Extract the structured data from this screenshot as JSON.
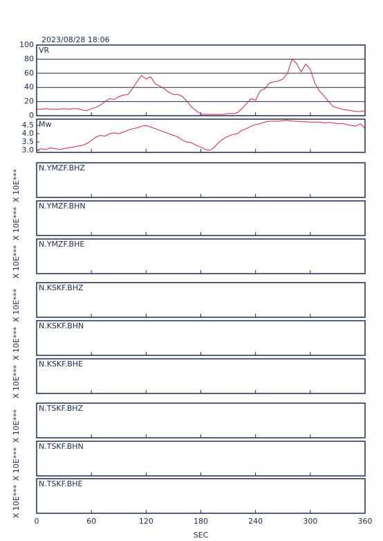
{
  "chart_data": [
    {
      "type": "line",
      "title": "2023/08/28 18:06",
      "label": "VR",
      "color": "#d0204a",
      "grid": true,
      "xlim": [
        0,
        360
      ],
      "xticks": [
        0,
        60,
        120,
        180,
        240,
        300,
        360
      ],
      "ylim": [
        0,
        100
      ],
      "yticks": [
        0,
        20,
        40,
        60,
        80,
        100
      ],
      "x": [
        0,
        5,
        10,
        15,
        20,
        25,
        30,
        35,
        40,
        45,
        50,
        55,
        60,
        65,
        70,
        75,
        80,
        85,
        90,
        95,
        100,
        105,
        110,
        115,
        120,
        125,
        130,
        135,
        140,
        145,
        150,
        155,
        160,
        165,
        170,
        175,
        180,
        185,
        190,
        195,
        200,
        205,
        210,
        215,
        220,
        225,
        230,
        235,
        240,
        245,
        250,
        255,
        260,
        265,
        270,
        275,
        280,
        285,
        290,
        295,
        300,
        305,
        310,
        315,
        320,
        325,
        330,
        335,
        340,
        345,
        350,
        355,
        360
      ],
      "values": [
        9,
        9,
        10,
        9,
        9,
        9,
        10,
        9,
        10,
        10,
        8,
        7,
        10,
        12,
        15,
        20,
        24,
        23,
        27,
        29,
        30,
        38,
        48,
        57,
        52,
        55,
        45,
        42,
        38,
        33,
        30,
        30,
        27,
        20,
        12,
        7,
        2,
        2,
        2,
        2,
        2,
        2,
        3,
        3,
        4,
        10,
        17,
        24,
        22,
        35,
        38,
        46,
        48,
        49,
        52,
        60,
        80,
        74,
        62,
        73,
        66,
        46,
        35,
        28,
        20,
        13,
        11,
        9,
        8,
        7,
        6,
        6,
        7
      ]
    },
    {
      "type": "line",
      "label": "Mw",
      "color": "#d0204a",
      "grid": false,
      "xlim": [
        0,
        360
      ],
      "xticks": [
        0,
        60,
        120,
        180,
        240,
        300,
        360
      ],
      "ylim": [
        2.875,
        4.875
      ],
      "yticks": [
        {
          "value": 3,
          "label": "3.0"
        },
        3.5,
        {
          "value": 4,
          "label": "4.0"
        },
        4.5
      ],
      "x": [
        0,
        5,
        10,
        15,
        20,
        25,
        30,
        35,
        40,
        45,
        50,
        55,
        60,
        65,
        70,
        75,
        80,
        85,
        90,
        95,
        100,
        105,
        110,
        115,
        120,
        125,
        130,
        135,
        140,
        145,
        150,
        155,
        160,
        165,
        170,
        175,
        180,
        185,
        190,
        195,
        200,
        205,
        210,
        215,
        220,
        225,
        230,
        235,
        240,
        245,
        250,
        255,
        260,
        265,
        270,
        275,
        280,
        285,
        290,
        295,
        300,
        305,
        310,
        315,
        320,
        325,
        330,
        335,
        340,
        345,
        350,
        355,
        360
      ],
      "values": [
        3.0,
        3.1,
        3.05,
        3.15,
        3.1,
        3.05,
        3.1,
        3.15,
        3.2,
        3.25,
        3.3,
        3.4,
        3.6,
        3.8,
        3.9,
        3.85,
        4.0,
        4.05,
        4.0,
        4.1,
        4.2,
        4.3,
        4.35,
        4.45,
        4.5,
        4.4,
        4.3,
        4.2,
        4.1,
        4.0,
        3.9,
        3.8,
        3.6,
        3.5,
        3.45,
        3.3,
        3.2,
        3.05,
        3.0,
        3.2,
        3.5,
        3.7,
        3.85,
        3.95,
        4.0,
        4.2,
        4.3,
        4.45,
        4.55,
        4.6,
        4.7,
        4.75,
        4.75,
        4.75,
        4.78,
        4.8,
        4.75,
        4.75,
        4.72,
        4.72,
        4.7,
        4.7,
        4.7,
        4.65,
        4.68,
        4.65,
        4.6,
        4.62,
        4.55,
        4.5,
        4.45,
        4.6,
        4.3
      ]
    },
    {
      "type": "line",
      "label": "N.YMZF.BHZ",
      "ylabel": "X 10E***",
      "xlim": [
        0,
        360
      ],
      "xticks": [
        0,
        60,
        120,
        180,
        240,
        300,
        360
      ]
    },
    {
      "type": "line",
      "label": "N.YMZF.BHN",
      "ylabel": "X 10E***",
      "xlim": [
        0,
        360
      ],
      "xticks": [
        0,
        60,
        120,
        180,
        240,
        300,
        360
      ]
    },
    {
      "type": "line",
      "label": "N.YMZF.BHE",
      "ylabel": "X 10E***",
      "xlim": [
        0,
        360
      ],
      "xticks": [
        0,
        60,
        120,
        180,
        240,
        300,
        360
      ]
    },
    {
      "type": "line",
      "label": "N.KSKF.BHZ",
      "ylabel": "X 10E***",
      "xlim": [
        0,
        360
      ],
      "xticks": [
        0,
        60,
        120,
        180,
        240,
        300,
        360
      ]
    },
    {
      "type": "line",
      "label": "N.KSKF.BHN",
      "ylabel": "X 10E***",
      "xlim": [
        0,
        360
      ],
      "xticks": [
        0,
        60,
        120,
        180,
        240,
        300,
        360
      ]
    },
    {
      "type": "line",
      "label": "N.KSKF.BHE",
      "ylabel": "X 10E***",
      "xlim": [
        0,
        360
      ],
      "xticks": [
        0,
        60,
        120,
        180,
        240,
        300,
        360
      ]
    },
    {
      "type": "line",
      "label": "N.TSKF.BHZ",
      "ylabel": "X 10E***",
      "xlim": [
        0,
        360
      ],
      "xticks": [
        0,
        60,
        120,
        180,
        240,
        300,
        360
      ]
    },
    {
      "type": "line",
      "label": "N.TSKF.BHN",
      "ylabel": "X 10E***",
      "xlim": [
        0,
        360
      ],
      "xticks": [
        0,
        60,
        120,
        180,
        240,
        300,
        360
      ]
    },
    {
      "type": "line",
      "label": "N.TSKF.BHE",
      "ylabel": "X 10E***",
      "xlabel": "SEC",
      "xlim": [
        0,
        360
      ],
      "xticks": [
        0,
        60,
        120,
        180,
        240,
        300,
        360
      ]
    }
  ]
}
